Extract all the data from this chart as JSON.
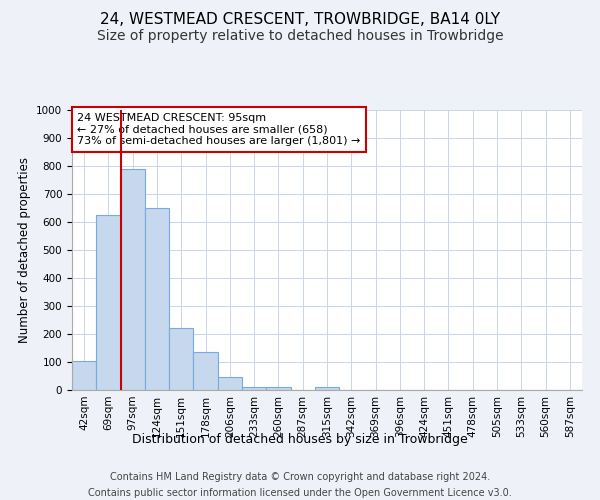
{
  "title1": "24, WESTMEAD CRESCENT, TROWBRIDGE, BA14 0LY",
  "title2": "Size of property relative to detached houses in Trowbridge",
  "xlabel": "Distribution of detached houses by size in Trowbridge",
  "ylabel": "Number of detached properties",
  "categories": [
    "42sqm",
    "69sqm",
    "97sqm",
    "124sqm",
    "151sqm",
    "178sqm",
    "206sqm",
    "233sqm",
    "260sqm",
    "287sqm",
    "315sqm",
    "342sqm",
    "369sqm",
    "396sqm",
    "424sqm",
    "451sqm",
    "478sqm",
    "505sqm",
    "533sqm",
    "560sqm",
    "587sqm"
  ],
  "values": [
    104,
    625,
    790,
    650,
    220,
    135,
    45,
    10,
    10,
    0,
    10,
    0,
    0,
    0,
    0,
    0,
    0,
    0,
    0,
    0,
    0
  ],
  "bar_color": "#c5d8ee",
  "bar_edge_color": "#7aaadc",
  "subject_line_color": "#cc0000",
  "annotation_text": "24 WESTMEAD CRESCENT: 95sqm\n← 27% of detached houses are smaller (658)\n73% of semi-detached houses are larger (1,801) →",
  "annotation_box_edgecolor": "#cc0000",
  "ylim": [
    0,
    1000
  ],
  "yticks": [
    0,
    100,
    200,
    300,
    400,
    500,
    600,
    700,
    800,
    900,
    1000
  ],
  "footer1": "Contains HM Land Registry data © Crown copyright and database right 2024.",
  "footer2": "Contains public sector information licensed under the Open Government Licence v3.0.",
  "bg_color": "#eef2f8",
  "plot_bg_color": "#ffffff",
  "grid_color": "#c8d4e8",
  "title1_fontsize": 11,
  "title2_fontsize": 10,
  "xlabel_fontsize": 9,
  "ylabel_fontsize": 8.5,
  "tick_fontsize": 7.5,
  "footer_fontsize": 7,
  "annotation_fontsize": 8
}
